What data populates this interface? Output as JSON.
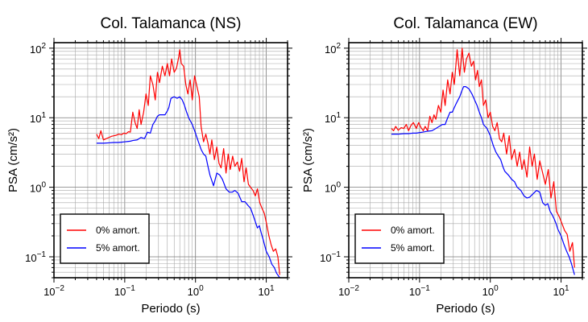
{
  "chart_data": [
    {
      "type": "line",
      "title": "Col. Talamanca (NS)",
      "xlabel": "Periodo (s)",
      "ylabel": "PSA (cm/s²)",
      "xscale": "log",
      "yscale": "log",
      "xlim": [
        0.01,
        20
      ],
      "ylim": [
        0.05,
        120
      ],
      "grid": true,
      "legend_position": "bottom-left",
      "xticks": [
        {
          "value": 0.01,
          "base": "10",
          "exp": "−2"
        },
        {
          "value": 0.1,
          "base": "10",
          "exp": "−1"
        },
        {
          "value": 1,
          "base": "10",
          "exp": "0"
        },
        {
          "value": 10,
          "base": "10",
          "exp": "1"
        }
      ],
      "yticks": [
        {
          "value": 0.1,
          "base": "10",
          "exp": "−1"
        },
        {
          "value": 1,
          "base": "10",
          "exp": "0"
        },
        {
          "value": 10,
          "base": "10",
          "exp": "1"
        },
        {
          "value": 100,
          "base": "10",
          "exp": "2"
        }
      ],
      "series": [
        {
          "name": "0% amort.",
          "color": "#ff0000",
          "x": [
            0.04,
            0.043,
            0.046,
            0.05,
            0.055,
            0.06,
            0.065,
            0.07,
            0.076,
            0.082,
            0.09,
            0.097,
            0.105,
            0.113,
            0.12,
            0.13,
            0.14,
            0.15,
            0.16,
            0.17,
            0.185,
            0.2,
            0.215,
            0.23,
            0.25,
            0.27,
            0.29,
            0.31,
            0.34,
            0.37,
            0.4,
            0.43,
            0.46,
            0.5,
            0.54,
            0.58,
            0.6,
            0.63,
            0.68,
            0.73,
            0.78,
            0.84,
            0.9,
            0.97,
            1.05,
            1.13,
            1.2,
            1.3,
            1.4,
            1.5,
            1.6,
            1.7,
            1.85,
            2.0,
            2.15,
            2.3,
            2.5,
            2.7,
            2.9,
            3.1,
            3.35,
            3.6,
            3.9,
            4.2,
            4.5,
            4.85,
            5.2,
            5.6,
            6.0,
            6.5,
            7.0,
            7.5,
            8.1,
            8.7,
            9.4,
            10.1,
            10.9,
            11.7,
            12.6,
            13.6,
            14.6,
            15.5
          ],
          "y": [
            5.8,
            5.0,
            6.5,
            4.8,
            5.0,
            5.2,
            5.4,
            5.5,
            5.6,
            5.8,
            5.7,
            6.0,
            5.9,
            6.3,
            6.2,
            12.0,
            8.5,
            7.0,
            13.0,
            8.0,
            12.0,
            22.0,
            15.0,
            40.0,
            30.0,
            18.0,
            45.0,
            32.0,
            55.0,
            40.0,
            60.0,
            40.0,
            70.0,
            45.0,
            52.0,
            75.0,
            95.0,
            60.0,
            55.0,
            30.0,
            22.0,
            35.0,
            18.0,
            40.0,
            28.0,
            20.0,
            7.5,
            4.5,
            5.8,
            4.3,
            3.0,
            4.8,
            2.5,
            3.8,
            2.2,
            1.9,
            3.6,
            1.6,
            3.0,
            1.8,
            2.8,
            2.0,
            2.3,
            1.7,
            2.6,
            1.2,
            1.9,
            1.1,
            1.0,
            0.9,
            0.75,
            0.95,
            0.6,
            0.5,
            0.42,
            0.3,
            0.2,
            0.15,
            0.12,
            0.13,
            0.1,
            0.055
          ]
        },
        {
          "name": "5% amort.",
          "color": "#0000ff",
          "x": [
            0.04,
            0.05,
            0.06,
            0.07,
            0.08,
            0.09,
            0.1,
            0.11,
            0.12,
            0.13,
            0.15,
            0.17,
            0.19,
            0.21,
            0.23,
            0.25,
            0.27,
            0.29,
            0.31,
            0.33,
            0.35,
            0.37,
            0.4,
            0.42,
            0.45,
            0.5,
            0.55,
            0.6,
            0.65,
            0.7,
            0.75,
            0.8,
            0.9,
            1.0,
            1.1,
            1.2,
            1.3,
            1.4,
            1.5,
            1.6,
            1.8,
            2.0,
            2.2,
            2.4,
            2.7,
            3.0,
            3.3,
            3.6,
            4.0,
            4.5,
            5.0,
            5.5,
            6.0,
            6.5,
            7.0,
            7.5,
            8.0,
            8.5,
            9.0,
            10.0,
            11.0,
            12.0,
            13.0,
            14.0,
            15.5
          ],
          "y": [
            4.3,
            4.3,
            4.35,
            4.4,
            4.4,
            4.45,
            4.5,
            4.55,
            4.6,
            4.7,
            4.8,
            5.2,
            5.0,
            6.2,
            6.0,
            8.0,
            9.0,
            10.5,
            11.0,
            11.0,
            11.0,
            11.0,
            12.5,
            14.0,
            19.0,
            20.0,
            19.0,
            20.0,
            18.0,
            15.0,
            12.0,
            10.0,
            8.0,
            6.0,
            4.5,
            3.5,
            3.0,
            2.8,
            2.0,
            1.5,
            1.05,
            1.6,
            1.5,
            1.3,
            0.95,
            0.85,
            0.85,
            0.9,
            0.82,
            0.62,
            0.62,
            0.55,
            0.5,
            0.4,
            0.32,
            0.26,
            0.28,
            0.22,
            0.18,
            0.12,
            0.1,
            0.078,
            0.07,
            0.058,
            0.05
          ]
        }
      ]
    },
    {
      "type": "line",
      "title": "Col. Talamanca (EW)",
      "xlabel": "Periodo (s)",
      "ylabel": "PSA (cm/s²)",
      "xscale": "log",
      "yscale": "log",
      "xlim": [
        0.01,
        20
      ],
      "ylim": [
        0.05,
        120
      ],
      "grid": true,
      "legend_position": "bottom-left",
      "xticks": [
        {
          "value": 0.01,
          "base": "10",
          "exp": "−2"
        },
        {
          "value": 0.1,
          "base": "10",
          "exp": "−1"
        },
        {
          "value": 1,
          "base": "10",
          "exp": "0"
        },
        {
          "value": 10,
          "base": "10",
          "exp": "1"
        }
      ],
      "yticks": [
        {
          "value": 0.1,
          "base": "10",
          "exp": "−1"
        },
        {
          "value": 1,
          "base": "10",
          "exp": "0"
        },
        {
          "value": 10,
          "base": "10",
          "exp": "1"
        },
        {
          "value": 100,
          "base": "10",
          "exp": "2"
        }
      ],
      "series": [
        {
          "name": "0% amort.",
          "color": "#ff0000",
          "x": [
            0.04,
            0.043,
            0.046,
            0.05,
            0.055,
            0.06,
            0.065,
            0.07,
            0.076,
            0.082,
            0.09,
            0.097,
            0.105,
            0.113,
            0.12,
            0.13,
            0.14,
            0.15,
            0.16,
            0.17,
            0.185,
            0.2,
            0.215,
            0.23,
            0.25,
            0.27,
            0.29,
            0.31,
            0.34,
            0.37,
            0.4,
            0.43,
            0.46,
            0.5,
            0.54,
            0.58,
            0.62,
            0.66,
            0.7,
            0.75,
            0.8,
            0.86,
            0.93,
            1.0,
            1.08,
            1.16,
            1.25,
            1.35,
            1.45,
            1.55,
            1.7,
            1.85,
            2.0,
            2.2,
            2.4,
            2.6,
            2.8,
            3.0,
            3.3,
            3.6,
            3.9,
            4.2,
            4.6,
            5.0,
            5.5,
            6.0,
            6.6,
            7.2,
            7.9,
            8.6,
            9.4,
            10.3,
            11.2,
            12.2,
            13.3,
            14.5,
            15.5
          ],
          "y": [
            7.0,
            6.5,
            7.5,
            6.6,
            7.2,
            7.0,
            8.0,
            6.5,
            7.8,
            8.5,
            7.0,
            8.5,
            7.2,
            6.5,
            7.5,
            6.5,
            10.5,
            8.5,
            11.0,
            9.5,
            15.0,
            12.0,
            25.0,
            15.0,
            35.0,
            22.0,
            45.0,
            30.0,
            95.0,
            40.0,
            100.0,
            45.0,
            70.0,
            85.0,
            55.0,
            65.0,
            35.0,
            48.0,
            28.0,
            35.0,
            15.0,
            18.0,
            10.0,
            12.0,
            7.5,
            6.5,
            8.5,
            5.0,
            4.5,
            6.0,
            3.0,
            5.5,
            2.5,
            3.5,
            2.0,
            3.2,
            1.8,
            2.5,
            1.4,
            3.8,
            2.0,
            3.0,
            1.3,
            2.4,
            1.6,
            1.1,
            1.8,
            0.7,
            1.2,
            0.45,
            0.38,
            0.3,
            0.24,
            0.21,
            0.12,
            0.16,
            0.07
          ]
        },
        {
          "name": "5% amort.",
          "color": "#0000ff",
          "x": [
            0.04,
            0.05,
            0.06,
            0.07,
            0.08,
            0.09,
            0.1,
            0.11,
            0.12,
            0.13,
            0.15,
            0.17,
            0.19,
            0.21,
            0.23,
            0.25,
            0.27,
            0.29,
            0.31,
            0.33,
            0.35,
            0.37,
            0.4,
            0.42,
            0.45,
            0.5,
            0.55,
            0.6,
            0.65,
            0.7,
            0.75,
            0.8,
            0.9,
            1.0,
            1.1,
            1.2,
            1.3,
            1.4,
            1.5,
            1.6,
            1.8,
            2.0,
            2.2,
            2.4,
            2.7,
            3.0,
            3.3,
            3.6,
            4.0,
            4.5,
            5.0,
            5.5,
            6.0,
            6.5,
            7.0,
            7.5,
            8.0,
            8.5,
            9.0,
            10.0,
            11.0,
            12.0,
            13.0,
            14.0,
            15.5
          ],
          "y": [
            5.8,
            5.8,
            5.9,
            5.9,
            6.0,
            6.0,
            6.1,
            6.2,
            6.3,
            6.4,
            6.5,
            7.0,
            7.5,
            8.0,
            8.0,
            10.0,
            12.0,
            12.0,
            14.0,
            16.0,
            18.0,
            20.0,
            25.0,
            28.0,
            28.0,
            26.0,
            22.0,
            18.0,
            15.0,
            12.0,
            10.0,
            8.0,
            7.0,
            5.5,
            4.0,
            3.2,
            2.8,
            2.5,
            2.0,
            1.7,
            1.5,
            1.3,
            1.2,
            1.0,
            0.9,
            0.75,
            0.7,
            0.72,
            0.8,
            0.9,
            0.85,
            0.6,
            0.55,
            0.58,
            0.45,
            0.4,
            0.35,
            0.3,
            0.25,
            0.2,
            0.15,
            0.12,
            0.1,
            0.08,
            0.055
          ]
        }
      ]
    }
  ]
}
